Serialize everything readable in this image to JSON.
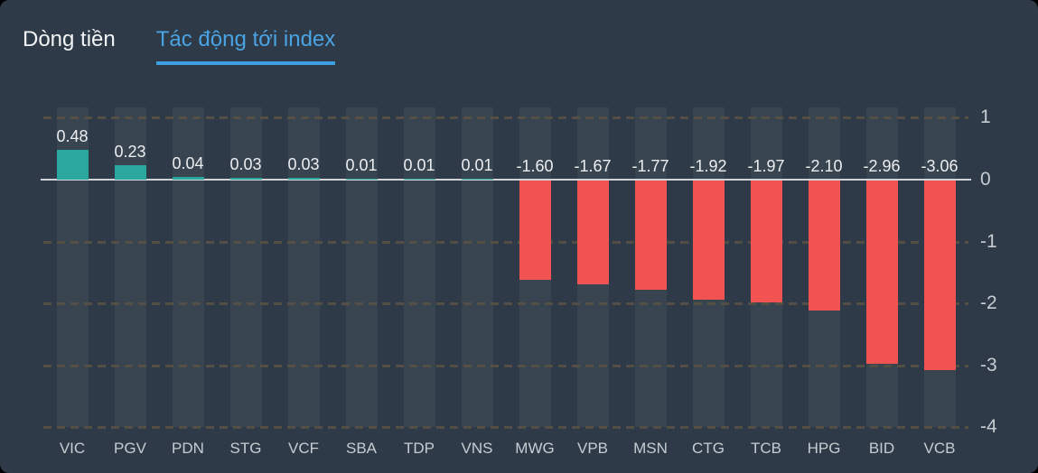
{
  "tabs": [
    {
      "label": "Dòng tiền",
      "active": false
    },
    {
      "label": "Tác động tới index",
      "active": true
    }
  ],
  "colors": {
    "panel_bg": "#2e3a47",
    "column_band": "rgba(255,255,255,0.055)",
    "positive_bar": "#2aa89d",
    "negative_bar": "#f05351",
    "zero_line": "#d0d4d8",
    "dashed_gridline": "#5a5243",
    "tab_active": "#4aa3e2",
    "tab_underline": "#3f9fe3",
    "tab_inactive": "#f2f4f6",
    "value_label": "#eceef0",
    "axis_label": "#c7ccd2"
  },
  "chart_data": {
    "type": "bar",
    "title": "Tác động tới index",
    "categories": [
      "VIC",
      "PGV",
      "PDN",
      "STG",
      "VCF",
      "SBA",
      "TDP",
      "VNS",
      "MWG",
      "VPB",
      "MSN",
      "CTG",
      "TCB",
      "HPG",
      "BID",
      "VCB"
    ],
    "values": [
      0.48,
      0.23,
      0.04,
      0.03,
      0.03,
      0.01,
      0.01,
      0.01,
      -1.6,
      -1.67,
      -1.77,
      -1.92,
      -1.97,
      -2.1,
      -2.96,
      -3.06
    ],
    "value_labels": [
      "0.48",
      "0.23",
      "0.04",
      "0.03",
      "0.03",
      "0.01",
      "0.01",
      "0.01",
      "-1.60",
      "-1.67",
      "-1.77",
      "-1.92",
      "-1.97",
      "-2.10",
      "-2.96",
      "-3.06"
    ],
    "xlabel": "",
    "ylabel": "",
    "yticks": [
      1,
      0,
      -1,
      -2,
      -3,
      -4
    ],
    "ylim": [
      -4,
      1.17
    ],
    "axis_position": "right",
    "grid": "horizontal-dashed",
    "column_background": true,
    "legend": "none"
  }
}
